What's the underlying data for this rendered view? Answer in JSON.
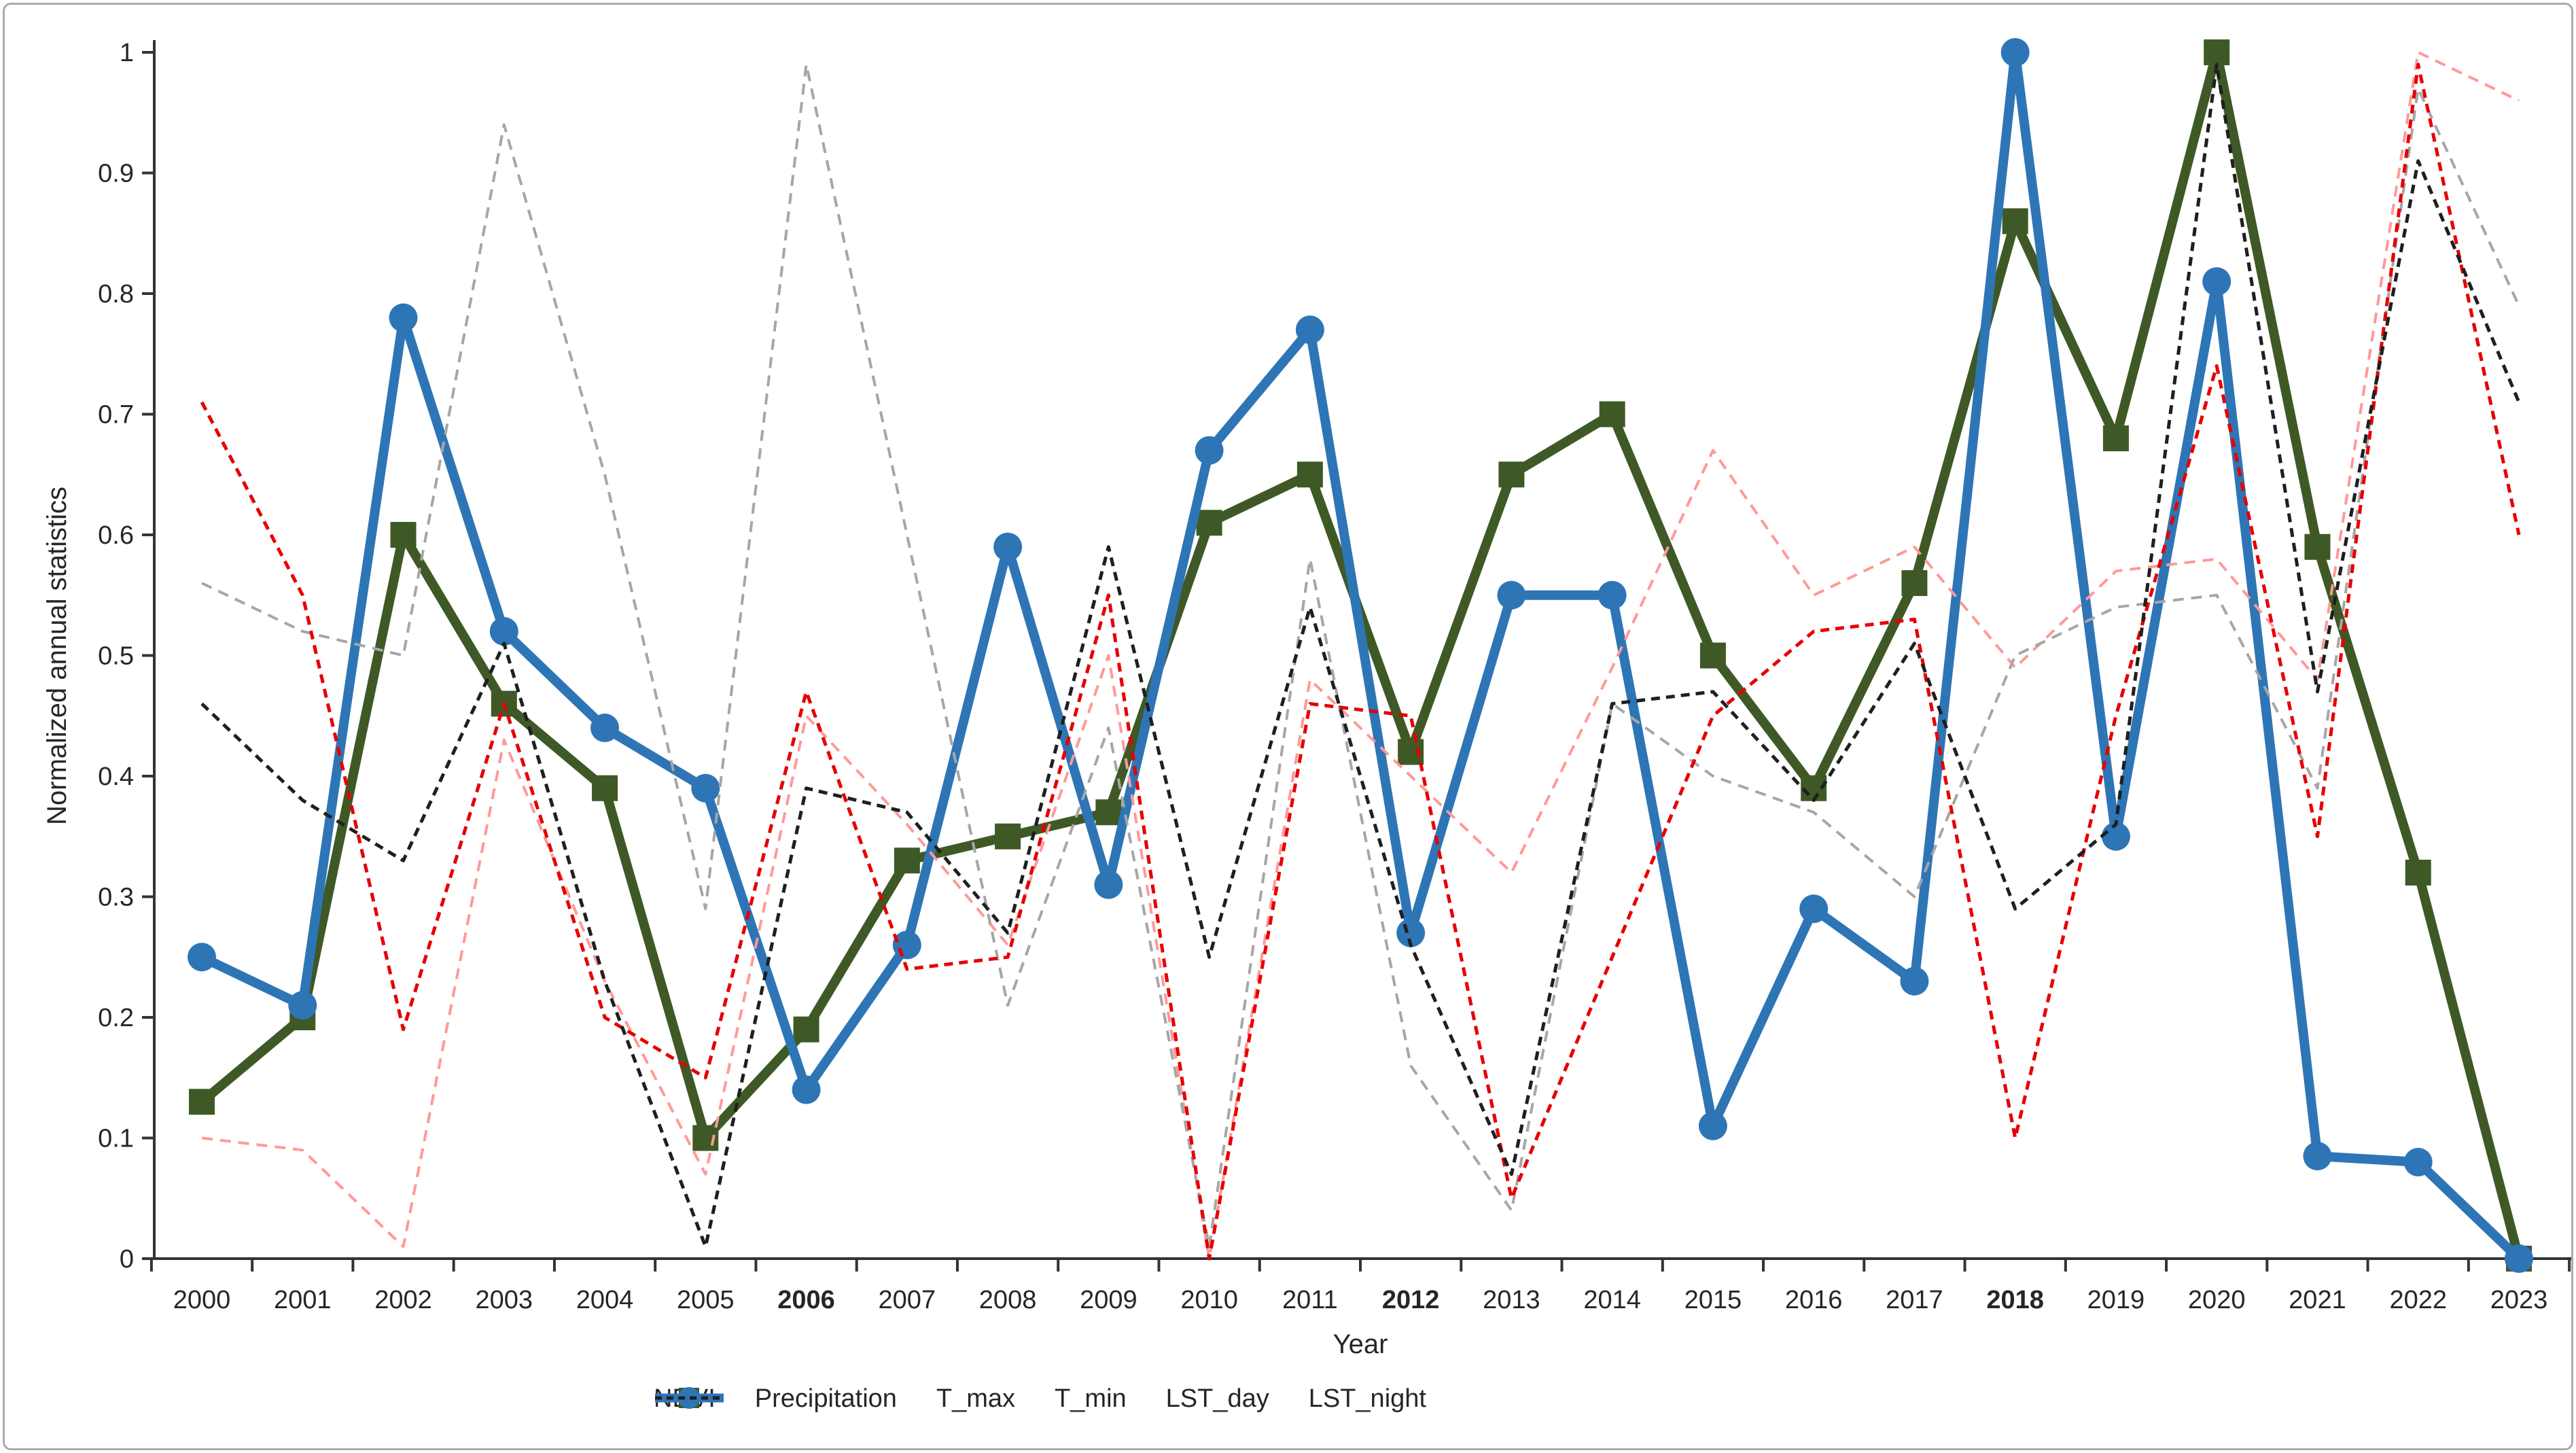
{
  "figure": {
    "background": "#ffffff",
    "border_color": "#ababab"
  },
  "chart_data": {
    "type": "line",
    "title": "",
    "xlabel": "Year",
    "ylabel": "Normalized annual statistics",
    "ylim": [
      0,
      1
    ],
    "grid": false,
    "legend_position": "bottom",
    "y_ticks": [
      "0",
      "0.1",
      "0.2",
      "0.3",
      "0.4",
      "0.5",
      "0.6",
      "0.7",
      "0.8",
      "0.9",
      "1"
    ],
    "categories": [
      "2000",
      "2001",
      "2002",
      "2003",
      "2004",
      "2005",
      "2006",
      "2007",
      "2008",
      "2009",
      "2010",
      "2011",
      "2012",
      "2013",
      "2014",
      "2015",
      "2016",
      "2017",
      "2018",
      "2019",
      "2020",
      "2021",
      "2022",
      "2023"
    ],
    "bold_categories": [
      "2006",
      "2012",
      "2018"
    ],
    "series": [
      {
        "name": "NDVI",
        "color": "#3e5926",
        "style": "solid",
        "marker": "square",
        "width": 14,
        "values": [
          0.13,
          0.2,
          0.6,
          0.46,
          0.39,
          0.1,
          0.19,
          0.33,
          0.35,
          0.37,
          0.61,
          0.65,
          0.42,
          0.65,
          0.7,
          0.5,
          0.39,
          0.56,
          0.86,
          0.68,
          1.0,
          0.59,
          0.32,
          0.0
        ]
      },
      {
        "name": "Precipitation",
        "color": "#2e75b6",
        "style": "solid",
        "marker": "circle",
        "width": 14,
        "values": [
          0.25,
          0.21,
          0.78,
          0.52,
          0.44,
          0.39,
          0.14,
          0.26,
          0.59,
          0.31,
          0.67,
          0.77,
          0.27,
          0.55,
          0.55,
          0.11,
          0.29,
          0.23,
          1.0,
          0.35,
          0.81,
          0.085,
          0.08,
          0.0
        ]
      },
      {
        "name": "T_max",
        "color": "#ff9999",
        "style": "dashed",
        "marker": "none",
        "width": 4,
        "values": [
          0.1,
          0.09,
          0.01,
          0.43,
          0.23,
          0.07,
          0.45,
          0.36,
          0.26,
          0.5,
          0.0,
          0.48,
          0.4,
          0.32,
          0.49,
          0.67,
          0.55,
          0.59,
          0.49,
          0.57,
          0.58,
          0.48,
          1.0,
          0.96
        ]
      },
      {
        "name": "T_min",
        "color": "#a6a6a6",
        "style": "dashed",
        "marker": "none",
        "width": 4,
        "values": [
          0.56,
          0.52,
          0.5,
          0.94,
          0.65,
          0.29,
          0.99,
          0.6,
          0.21,
          0.44,
          0.01,
          0.58,
          0.16,
          0.04,
          0.46,
          0.4,
          0.37,
          0.3,
          0.5,
          0.54,
          0.55,
          0.39,
          0.97,
          0.79
        ]
      },
      {
        "name": "LST_day",
        "color": "#e60000",
        "style": "dashed",
        "marker": "none",
        "width": 5,
        "values": [
          0.71,
          0.55,
          0.19,
          0.46,
          0.2,
          0.15,
          0.47,
          0.24,
          0.25,
          0.55,
          0.0,
          0.46,
          0.45,
          0.05,
          0.25,
          0.45,
          0.52,
          0.53,
          0.1,
          0.45,
          0.74,
          0.35,
          0.99,
          0.6
        ]
      },
      {
        "name": "LST_night",
        "color": "#1f1f1f",
        "style": "dashed",
        "marker": "none",
        "width": 5,
        "values": [
          0.46,
          0.38,
          0.33,
          0.51,
          0.23,
          0.01,
          0.39,
          0.37,
          0.27,
          0.59,
          0.25,
          0.54,
          0.26,
          0.07,
          0.46,
          0.47,
          0.38,
          0.51,
          0.29,
          0.36,
          0.99,
          0.47,
          0.91,
          0.71
        ]
      }
    ],
    "axis": {
      "color": "#333333",
      "text_color": "#262626",
      "tick_font_size": 38,
      "title_font_size": 38
    }
  }
}
